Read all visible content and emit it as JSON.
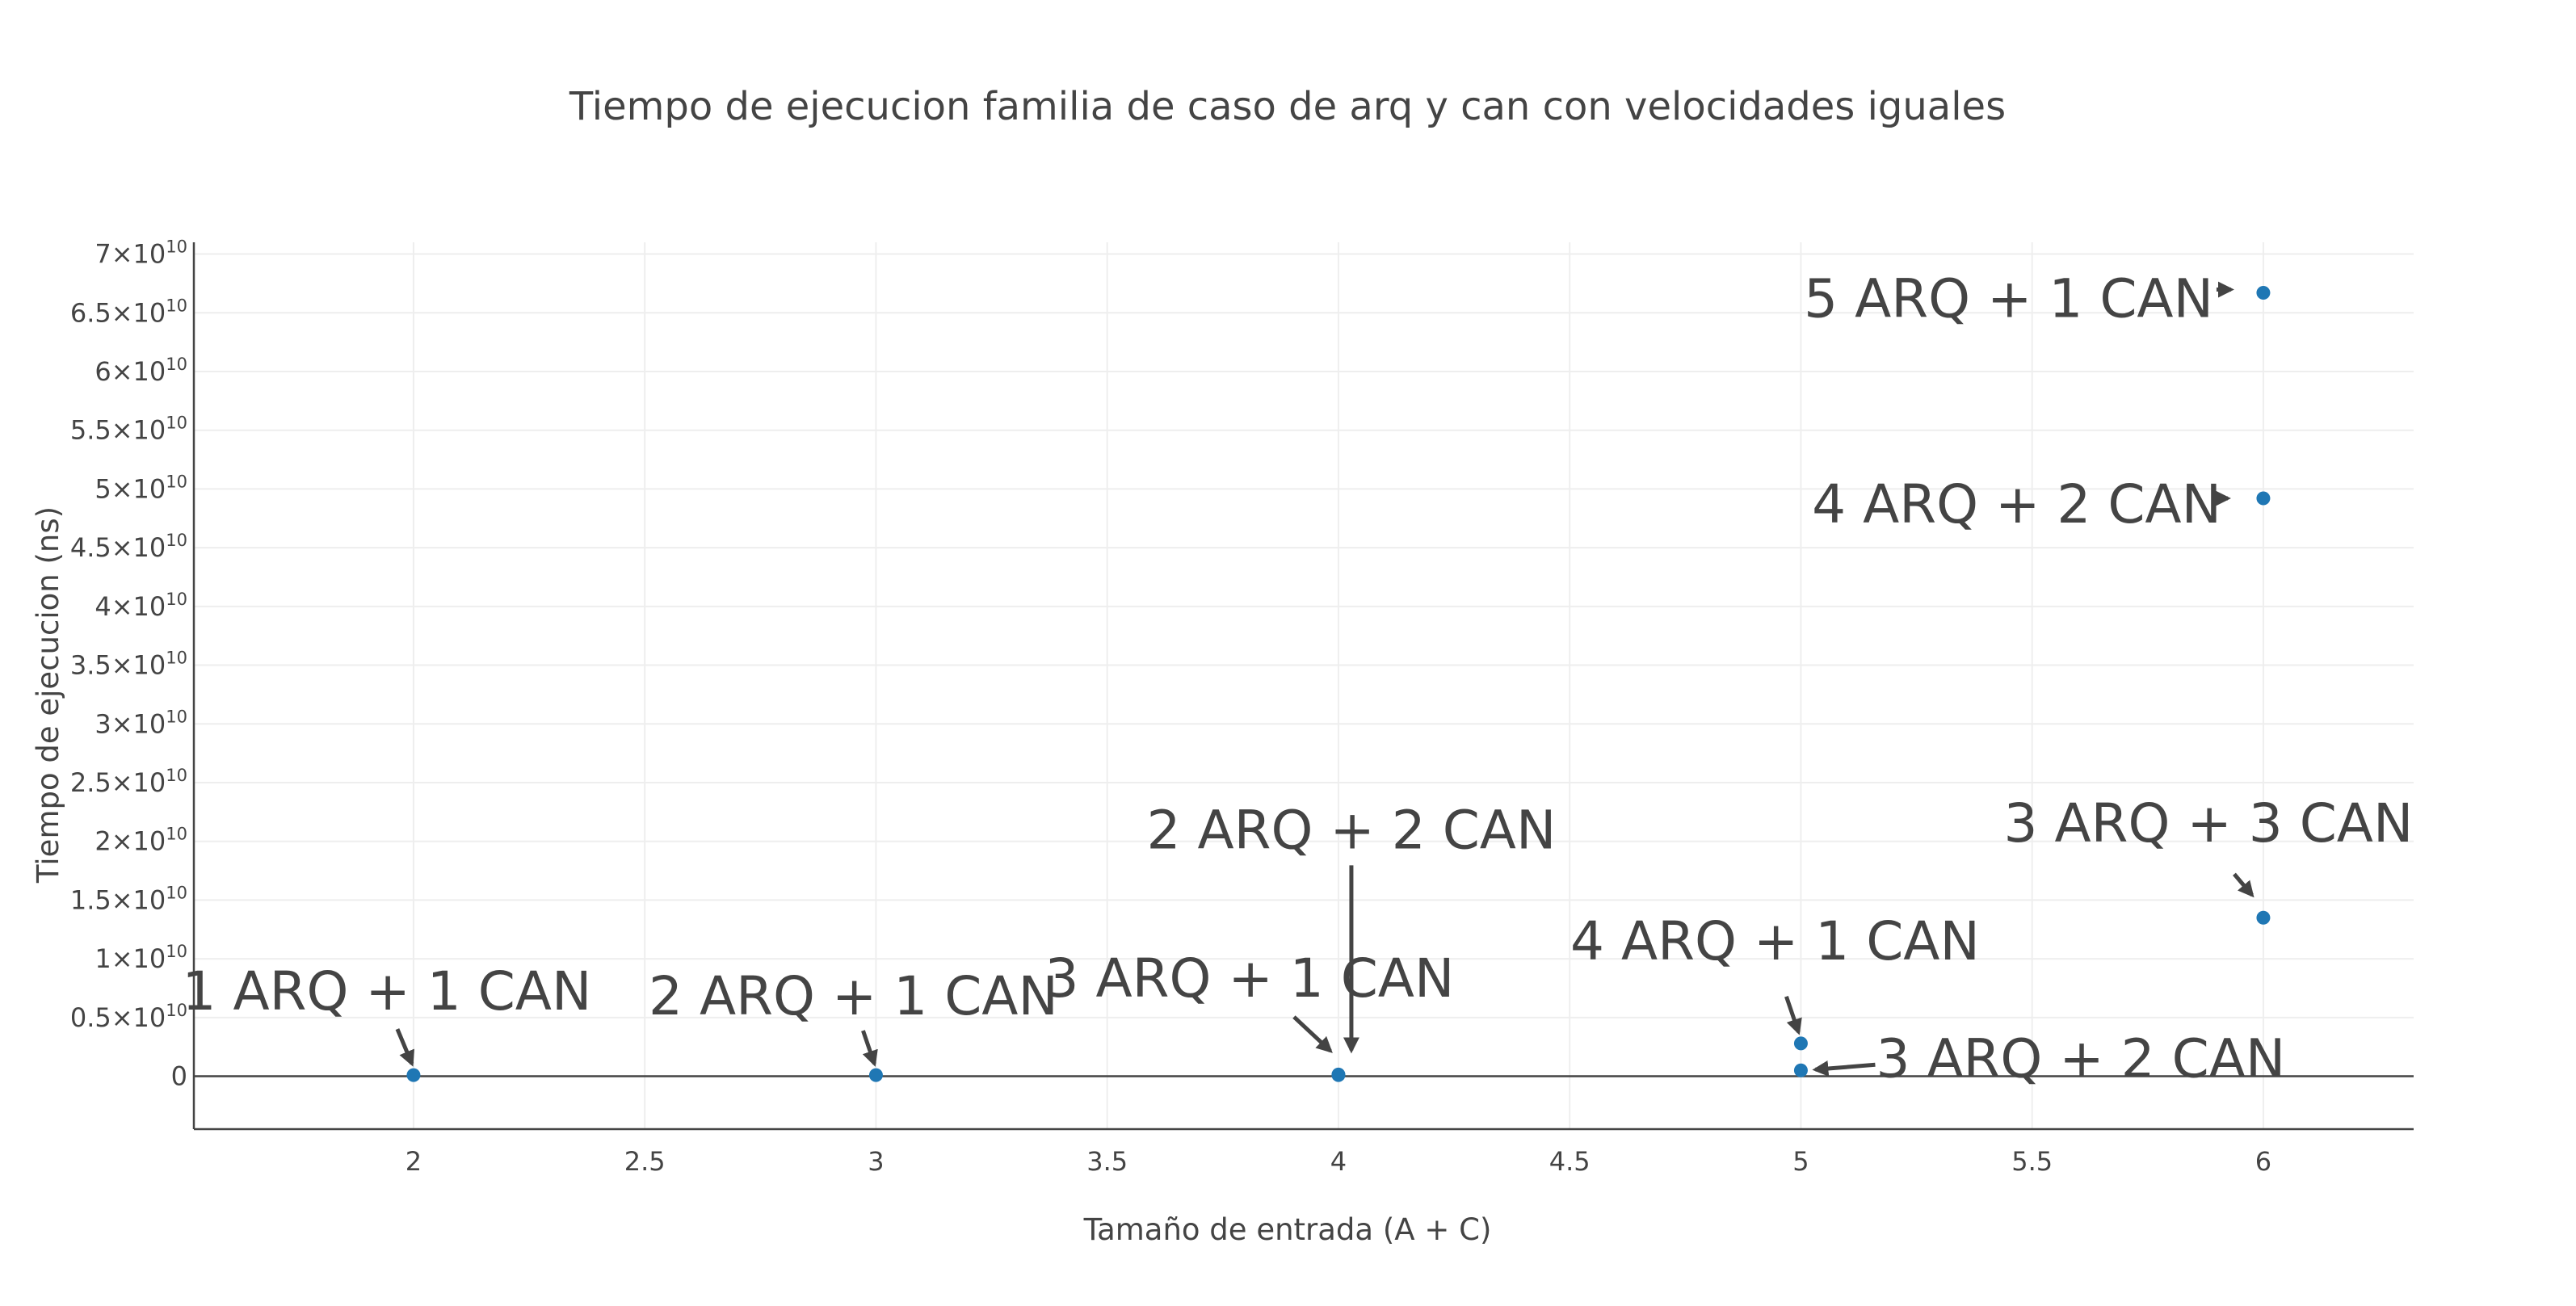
{
  "chart_data": {
    "type": "scatter",
    "title": "Tiempo de ejecucion familia de caso de arq y can con velocidades iguales",
    "xlabel": "Tamaño de entrada (A + C)",
    "ylabel": "Tiempo de ejecucion (ns)",
    "xlim": [
      1.525,
      6.325
    ],
    "ylim": [
      -4500000000,
      71000000000
    ],
    "x_ticks": [
      2,
      2.5,
      3,
      3.5,
      4,
      4.5,
      5,
      5.5,
      6
    ],
    "x_tick_labels": [
      "2",
      "2.5",
      "3",
      "3.5",
      "4",
      "4.5",
      "5",
      "5.5",
      "6"
    ],
    "y_ticks": [
      {
        "value": 0,
        "mantissa": "0",
        "exp": ""
      },
      {
        "value": 5000000000,
        "mantissa": "0.5×10",
        "exp": "10"
      },
      {
        "value": 10000000000,
        "mantissa": "1×10",
        "exp": "10"
      },
      {
        "value": 15000000000,
        "mantissa": "1.5×10",
        "exp": "10"
      },
      {
        "value": 20000000000,
        "mantissa": "2×10",
        "exp": "10"
      },
      {
        "value": 25000000000,
        "mantissa": "2.5×10",
        "exp": "10"
      },
      {
        "value": 30000000000,
        "mantissa": "3×10",
        "exp": "10"
      },
      {
        "value": 35000000000,
        "mantissa": "3.5×10",
        "exp": "10"
      },
      {
        "value": 40000000000,
        "mantissa": "4×10",
        "exp": "10"
      },
      {
        "value": 45000000000,
        "mantissa": "4.5×10",
        "exp": "10"
      },
      {
        "value": 50000000000,
        "mantissa": "5×10",
        "exp": "10"
      },
      {
        "value": 55000000000,
        "mantissa": "5.5×10",
        "exp": "10"
      },
      {
        "value": 60000000000,
        "mantissa": "6×10",
        "exp": "10"
      },
      {
        "value": 65000000000,
        "mantissa": "6.5×10",
        "exp": "10"
      },
      {
        "value": 70000000000,
        "mantissa": "7×10",
        "exp": "10"
      }
    ],
    "grid": true,
    "marker_color": "#1f77b4",
    "points": [
      {
        "x": 2,
        "y": 100000000,
        "label": "1 ARQ + 1 CAN"
      },
      {
        "x": 3,
        "y": 100000000,
        "label": "2 ARQ + 1 CAN"
      },
      {
        "x": 4,
        "y": 100000000,
        "label": "3 ARQ + 1 CAN"
      },
      {
        "x": 4,
        "y": 150000000,
        "label": "2 ARQ + 2 CAN"
      },
      {
        "x": 5,
        "y": 2800000000,
        "label": "4 ARQ + 1 CAN"
      },
      {
        "x": 5,
        "y": 500000000,
        "label": "3 ARQ + 2 CAN"
      },
      {
        "x": 6,
        "y": 13500000000,
        "label": "3 ARQ  + 3 CAN"
      },
      {
        "x": 6,
        "y": 49200000000,
        "label": "4 ARQ + 2 CAN"
      },
      {
        "x": 6,
        "y": 66700000000,
        "label": "5 ARQ + 1 CAN"
      }
    ]
  }
}
